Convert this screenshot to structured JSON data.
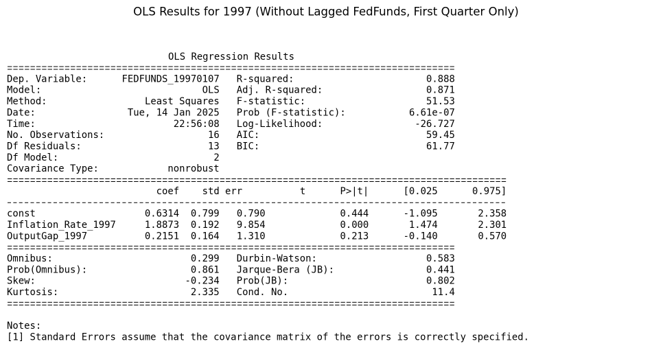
{
  "title": "OLS Results for 1997 (Without Lagged FedFunds, First Quarter Only)",
  "summary": {
    "heading": "OLS Regression Results",
    "model_info": [
      [
        "Dep. Variable:",
        "FEDFUNDS_19970107",
        "R-squared:",
        "0.888"
      ],
      [
        "Model:",
        "OLS",
        "Adj. R-squared:",
        "0.871"
      ],
      [
        "Method:",
        "Least Squares",
        "F-statistic:",
        "51.53"
      ],
      [
        "Date:",
        "Tue, 14 Jan 2025",
        "Prob (F-statistic):",
        "6.61e-07"
      ],
      [
        "Time:",
        "22:56:08",
        "Log-Likelihood:",
        "-26.727"
      ],
      [
        "No. Observations:",
        "16",
        "AIC:",
        "59.45"
      ],
      [
        "Df Residuals:",
        "13",
        "BIC:",
        "61.77"
      ],
      [
        "Df Model:",
        "2"
      ],
      [
        "Covariance Type:",
        "nonrobust"
      ]
    ],
    "coefficients": {
      "columns": [
        "coef",
        "std err",
        "t",
        "P>|t|",
        "[0.025",
        "0.975]"
      ],
      "rows": [
        [
          "const",
          "0.6314",
          "0.799",
          "0.790",
          "0.444",
          "-1.095",
          "2.358"
        ],
        [
          "Inflation_Rate_1997",
          "1.8873",
          "0.192",
          "9.854",
          "0.000",
          "1.474",
          "2.301"
        ],
        [
          "OutputGap_1997",
          "0.2151",
          "0.164",
          "1.310",
          "0.213",
          "-0.140",
          "0.570"
        ]
      ]
    },
    "diagnostics": [
      [
        "Omnibus:",
        "0.299",
        "Durbin-Watson:",
        "0.583"
      ],
      [
        "Prob(Omnibus):",
        "0.861",
        "Jarque-Bera (JB):",
        "0.441"
      ],
      [
        "Skew:",
        "-0.234",
        "Prob(JB):",
        "0.802"
      ],
      [
        "Kurtosis:",
        "2.335",
        "Cond. No.",
        "11.4"
      ]
    ],
    "notes": [
      "Notes:",
      "[1] Standard Errors assume that the covariance matrix of the errors is correctly specified."
    ]
  }
}
